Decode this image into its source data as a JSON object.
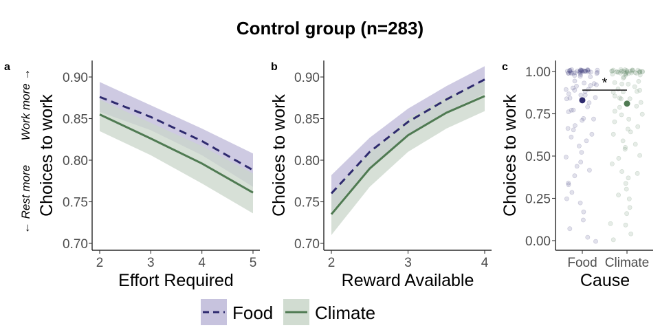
{
  "figure": {
    "title": "Control group (n=283)",
    "annotation_up": "Work more →",
    "annotation_down": "← Rest more"
  },
  "legend": {
    "items": [
      {
        "label": "Food",
        "color": "#2e2a6e",
        "fill": "#bdb8d8",
        "linestyle": "dashed"
      },
      {
        "label": "Climate",
        "color": "#4f7a52",
        "fill": "#c9d6c9",
        "linestyle": "solid"
      }
    ]
  },
  "chart_data": [
    {
      "panel": "a",
      "type": "line",
      "xlabel": "Effort Required",
      "ylabel": "Choices to work",
      "xlim": [
        1.95,
        5.1
      ],
      "ylim": [
        0.693,
        0.92
      ],
      "xticks": [
        2,
        3,
        4,
        5
      ],
      "yticks": [
        0.7,
        0.75,
        0.8,
        0.85,
        0.9
      ],
      "ytick_labels": [
        "0.70",
        "0.75",
        "0.80",
        "0.85",
        "0.90"
      ],
      "grid": false,
      "series": [
        {
          "name": "Food",
          "x": [
            2,
            3,
            4,
            5
          ],
          "y": [
            0.876,
            0.852,
            0.823,
            0.788
          ],
          "lower": [
            0.858,
            0.836,
            0.806,
            0.768
          ],
          "upper": [
            0.894,
            0.866,
            0.838,
            0.808
          ]
        },
        {
          "name": "Climate",
          "x": [
            2,
            3,
            4,
            5
          ],
          "y": [
            0.855,
            0.826,
            0.796,
            0.761
          ],
          "lower": [
            0.835,
            0.806,
            0.772,
            0.736
          ],
          "upper": [
            0.873,
            0.845,
            0.817,
            0.784
          ]
        }
      ]
    },
    {
      "panel": "b",
      "type": "line",
      "xlabel": "Reward Available",
      "ylabel": "Choices to work",
      "xlim": [
        1.9,
        4.1
      ],
      "ylim": [
        0.693,
        0.92
      ],
      "xticks": [
        2,
        3,
        4
      ],
      "yticks": [
        0.7,
        0.75,
        0.8,
        0.85,
        0.9
      ],
      "ytick_labels": [
        "0.70",
        "0.75",
        "0.80",
        "0.85",
        "0.90"
      ],
      "grid": false,
      "series": [
        {
          "name": "Food",
          "x": [
            2,
            2.5,
            3,
            3.5,
            4
          ],
          "y": [
            0.76,
            0.81,
            0.846,
            0.873,
            0.897
          ],
          "lower": [
            0.738,
            0.792,
            0.83,
            0.858,
            0.88
          ],
          "upper": [
            0.782,
            0.827,
            0.862,
            0.889,
            0.913
          ]
        },
        {
          "name": "Climate",
          "x": [
            2,
            2.5,
            3,
            3.5,
            4
          ],
          "y": [
            0.735,
            0.79,
            0.83,
            0.857,
            0.877
          ],
          "lower": [
            0.71,
            0.768,
            0.81,
            0.838,
            0.859
          ],
          "upper": [
            0.76,
            0.81,
            0.85,
            0.876,
            0.895
          ]
        }
      ]
    },
    {
      "panel": "c",
      "type": "scatter",
      "xlabel": "Cause",
      "ylabel": "Choices to work",
      "categories": [
        "Food",
        "Climate"
      ],
      "ylim": [
        -0.05,
        1.05
      ],
      "yticks": [
        0,
        0.25,
        0.5,
        0.75,
        1
      ],
      "ytick_labels": [
        "0.00",
        "0.25",
        "0.50",
        "0.75",
        "1.00"
      ],
      "grid": false,
      "means": [
        {
          "name": "Food",
          "value": 0.83
        },
        {
          "name": "Climate",
          "value": 0.81
        }
      ],
      "significance": {
        "label": "*",
        "y": 0.89
      },
      "series": [
        {
          "name": "Food",
          "values": [
            1,
            1,
            1,
            1,
            1,
            1,
            1,
            1,
            1,
            1,
            1,
            1,
            1,
            1,
            1,
            1,
            1,
            1,
            1,
            1,
            1,
            1,
            1,
            1,
            1,
            1,
            1,
            1,
            1,
            1,
            0.99,
            0.99,
            0.98,
            0.98,
            0.97,
            0.96,
            0.95,
            0.94,
            0.93,
            0.92,
            0.92,
            0.91,
            0.9,
            0.9,
            0.9,
            0.89,
            0.88,
            0.88,
            0.87,
            0.86,
            0.85,
            0.84,
            0.83,
            0.82,
            0.8,
            0.78,
            0.76,
            0.75,
            0.73,
            0.71,
            0.7,
            0.68,
            0.66,
            0.65,
            0.62,
            0.6,
            0.58,
            0.55,
            0.52,
            0.5,
            0.47,
            0.45,
            0.42,
            0.38,
            0.35,
            0.32,
            0.28,
            0.25,
            0.22,
            0.18,
            0.12,
            0.08,
            0.02,
            0
          ]
        },
        {
          "name": "Climate",
          "values": [
            1,
            1,
            1,
            1,
            1,
            1,
            1,
            1,
            1,
            1,
            1,
            1,
            1,
            1,
            1,
            1,
            1,
            1,
            1,
            1,
            1,
            1,
            1,
            1,
            1,
            1,
            1,
            1,
            1,
            1,
            0.99,
            0.99,
            0.98,
            0.97,
            0.96,
            0.95,
            0.94,
            0.93,
            0.92,
            0.92,
            0.91,
            0.9,
            0.9,
            0.89,
            0.88,
            0.87,
            0.86,
            0.85,
            0.84,
            0.83,
            0.82,
            0.8,
            0.79,
            0.77,
            0.75,
            0.74,
            0.72,
            0.7,
            0.68,
            0.66,
            0.64,
            0.62,
            0.6,
            0.58,
            0.56,
            0.53,
            0.5,
            0.48,
            0.45,
            0.42,
            0.4,
            0.36,
            0.33,
            0.3,
            0.27,
            0.24,
            0.2,
            0.15,
            0.1,
            0.08,
            0.03,
            0
          ]
        }
      ]
    }
  ]
}
